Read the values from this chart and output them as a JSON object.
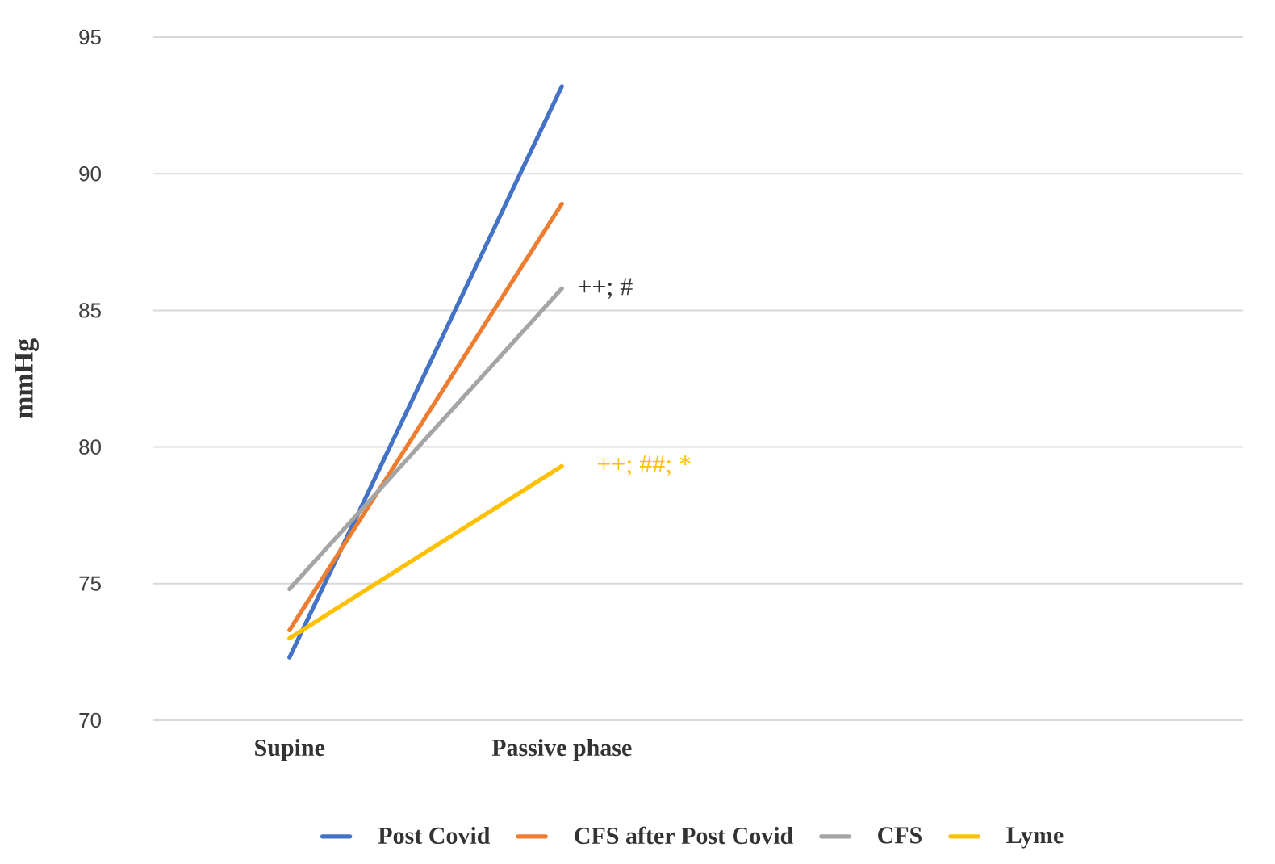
{
  "chart_data": {
    "type": "line",
    "ylabel": "mmHg",
    "categories": [
      "Supine",
      "Passive phase",
      null,
      null
    ],
    "ylim": [
      70,
      95
    ],
    "yticks": [
      70,
      75,
      80,
      85,
      90,
      95
    ],
    "grid": "y",
    "legend": "bottom",
    "marker": "none",
    "line_style": "solid",
    "series": [
      {
        "name": "Post Covid",
        "color": "#4472c4",
        "values": [
          72.3,
          93.2,
          null,
          null
        ]
      },
      {
        "name": "CFS after Post Covid",
        "color": "#ed7d31",
        "values": [
          73.3,
          88.9,
          null,
          null
        ]
      },
      {
        "name": "CFS",
        "color": "#a5a5a5",
        "values": [
          74.8,
          85.8,
          null,
          null
        ]
      },
      {
        "name": "Lyme",
        "color": "#ffc000",
        "values": [
          73.0,
          79.3,
          null,
          null
        ]
      }
    ],
    "annotations": [
      {
        "text": "++; #",
        "x": "Passive phase",
        "y": 85.8
      },
      {
        "text": "++; ##; *",
        "x": "Passive phase",
        "y": 79.3
      }
    ]
  }
}
